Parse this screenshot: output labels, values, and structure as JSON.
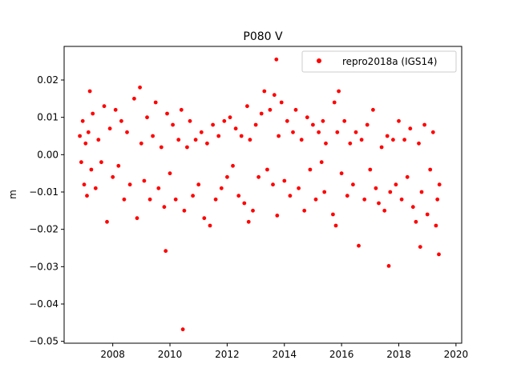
{
  "chart_data": {
    "type": "scatter",
    "title": "P080 V",
    "xlabel": "",
    "ylabel": "m",
    "xlim": [
      2006.3,
      2020.2
    ],
    "ylim": [
      -0.0505,
      0.029
    ],
    "x_ticks": [
      2008,
      2010,
      2012,
      2014,
      2016,
      2018,
      2020
    ],
    "x_tick_labels": [
      "2008",
      "2010",
      "2012",
      "2014",
      "2016",
      "2018",
      "2020"
    ],
    "y_ticks": [
      0.02,
      0.01,
      0.0,
      -0.01,
      -0.02,
      -0.03,
      -0.04,
      -0.05
    ],
    "y_tick_labels": [
      "0.02",
      "0.01",
      "0.00",
      "−0.01",
      "−0.02",
      "−0.03",
      "−0.04",
      "−0.05"
    ],
    "grid": false,
    "legend": "top-right",
    "series": [
      {
        "name": "repro2018a (IGS14)",
        "color": "#ff0000",
        "marker": "circle",
        "note_trend": "daily vertical residuals; dense band roughly between -0.01 and 0.01 m",
        "points": [
          [
            2006.85,
            0.005
          ],
          [
            2006.9,
            -0.002
          ],
          [
            2006.95,
            0.009
          ],
          [
            2007.0,
            -0.008
          ],
          [
            2007.05,
            0.003
          ],
          [
            2007.1,
            -0.011
          ],
          [
            2007.15,
            0.006
          ],
          [
            2007.2,
            0.017
          ],
          [
            2007.25,
            -0.004
          ],
          [
            2007.3,
            0.011
          ],
          [
            2007.4,
            -0.009
          ],
          [
            2007.5,
            0.004
          ],
          [
            2007.6,
            -0.002
          ],
          [
            2007.7,
            0.013
          ],
          [
            2007.8,
            -0.018
          ],
          [
            2007.9,
            0.007
          ],
          [
            2008.0,
            -0.006
          ],
          [
            2008.1,
            0.012
          ],
          [
            2008.2,
            -0.003
          ],
          [
            2008.3,
            0.009
          ],
          [
            2008.4,
            -0.012
          ],
          [
            2008.5,
            0.006
          ],
          [
            2008.6,
            -0.008
          ],
          [
            2008.75,
            0.015
          ],
          [
            2008.85,
            -0.017
          ],
          [
            2008.95,
            0.018
          ],
          [
            2009.0,
            0.003
          ],
          [
            2009.1,
            -0.007
          ],
          [
            2009.2,
            0.01
          ],
          [
            2009.3,
            -0.012
          ],
          [
            2009.4,
            0.005
          ],
          [
            2009.5,
            0.014
          ],
          [
            2009.6,
            -0.009
          ],
          [
            2009.7,
            0.002
          ],
          [
            2009.8,
            -0.014
          ],
          [
            2009.85,
            -0.0258
          ],
          [
            2009.9,
            0.011
          ],
          [
            2010.0,
            -0.005
          ],
          [
            2010.1,
            0.008
          ],
          [
            2010.2,
            -0.012
          ],
          [
            2010.3,
            0.004
          ],
          [
            2010.4,
            0.012
          ],
          [
            2010.45,
            -0.0468
          ],
          [
            2010.5,
            -0.015
          ],
          [
            2010.6,
            0.002
          ],
          [
            2010.7,
            0.009
          ],
          [
            2010.8,
            -0.011
          ],
          [
            2010.9,
            0.004
          ],
          [
            2011.0,
            -0.008
          ],
          [
            2011.1,
            0.006
          ],
          [
            2011.2,
            -0.017
          ],
          [
            2011.3,
            0.003
          ],
          [
            2011.4,
            -0.019
          ],
          [
            2011.5,
            0.008
          ],
          [
            2011.6,
            -0.012
          ],
          [
            2011.7,
            0.005
          ],
          [
            2011.8,
            -0.009
          ],
          [
            2011.9,
            0.009
          ],
          [
            2012.0,
            -0.006
          ],
          [
            2012.1,
            0.01
          ],
          [
            2012.2,
            -0.003
          ],
          [
            2012.3,
            0.007
          ],
          [
            2012.4,
            -0.011
          ],
          [
            2012.5,
            0.005
          ],
          [
            2012.6,
            -0.013
          ],
          [
            2012.7,
            0.013
          ],
          [
            2012.75,
            -0.018
          ],
          [
            2012.8,
            0.004
          ],
          [
            2012.9,
            -0.015
          ],
          [
            2013.0,
            0.008
          ],
          [
            2013.1,
            -0.006
          ],
          [
            2013.2,
            0.011
          ],
          [
            2013.3,
            0.017
          ],
          [
            2013.4,
            -0.004
          ],
          [
            2013.5,
            0.012
          ],
          [
            2013.6,
            -0.008
          ],
          [
            2013.65,
            0.016
          ],
          [
            2013.72,
            0.0255
          ],
          [
            2013.75,
            -0.0163
          ],
          [
            2013.8,
            0.005
          ],
          [
            2013.9,
            0.014
          ],
          [
            2014.0,
            -0.007
          ],
          [
            2014.1,
            0.009
          ],
          [
            2014.2,
            -0.011
          ],
          [
            2014.3,
            0.006
          ],
          [
            2014.4,
            0.012
          ],
          [
            2014.5,
            -0.009
          ],
          [
            2014.6,
            0.004
          ],
          [
            2014.7,
            -0.015
          ],
          [
            2014.8,
            0.01
          ],
          [
            2014.9,
            -0.004
          ],
          [
            2015.0,
            0.008
          ],
          [
            2015.1,
            -0.012
          ],
          [
            2015.2,
            0.006
          ],
          [
            2015.3,
            -0.002
          ],
          [
            2015.35,
            0.009
          ],
          [
            2015.4,
            -0.01
          ],
          [
            2015.45,
            0.003
          ],
          [
            2015.7,
            -0.016
          ],
          [
            2015.75,
            0.014
          ],
          [
            2015.8,
            -0.019
          ],
          [
            2015.85,
            0.006
          ],
          [
            2015.9,
            0.017
          ],
          [
            2016.0,
            -0.005
          ],
          [
            2016.1,
            0.009
          ],
          [
            2016.2,
            -0.011
          ],
          [
            2016.3,
            0.003
          ],
          [
            2016.4,
            -0.008
          ],
          [
            2016.5,
            0.006
          ],
          [
            2016.6,
            -0.0244
          ],
          [
            2016.7,
            0.004
          ],
          [
            2016.8,
            -0.012
          ],
          [
            2016.9,
            0.008
          ],
          [
            2017.0,
            -0.004
          ],
          [
            2017.1,
            0.012
          ],
          [
            2017.2,
            -0.009
          ],
          [
            2017.3,
            -0.013
          ],
          [
            2017.4,
            0.002
          ],
          [
            2017.5,
            -0.015
          ],
          [
            2017.6,
            0.005
          ],
          [
            2017.65,
            -0.0298
          ],
          [
            2017.7,
            -0.01
          ],
          [
            2017.8,
            0.004
          ],
          [
            2017.9,
            -0.008
          ],
          [
            2018.0,
            0.009
          ],
          [
            2018.1,
            -0.012
          ],
          [
            2018.2,
            0.004
          ],
          [
            2018.3,
            -0.006
          ],
          [
            2018.4,
            0.007
          ],
          [
            2018.5,
            -0.014
          ],
          [
            2018.6,
            -0.018
          ],
          [
            2018.7,
            0.003
          ],
          [
            2018.75,
            -0.0247
          ],
          [
            2018.8,
            -0.01
          ],
          [
            2018.9,
            0.008
          ],
          [
            2019.0,
            -0.016
          ],
          [
            2019.1,
            -0.004
          ],
          [
            2019.2,
            0.006
          ],
          [
            2019.3,
            -0.019
          ],
          [
            2019.35,
            -0.012
          ],
          [
            2019.4,
            -0.0267
          ],
          [
            2019.42,
            -0.008
          ]
        ]
      }
    ]
  }
}
